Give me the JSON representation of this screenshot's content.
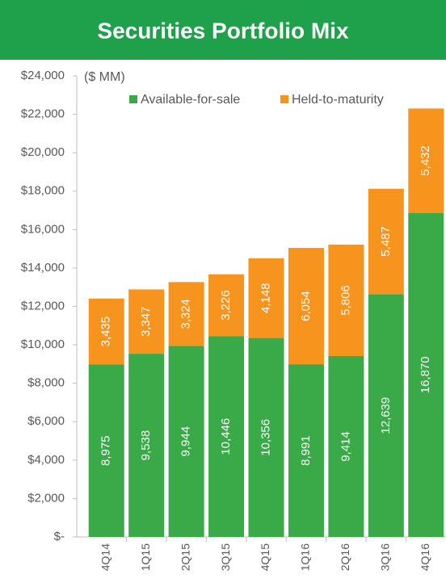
{
  "chart_data": {
    "type": "stacked_bar",
    "title": "Securities Portfolio Mix",
    "unit_label": "($ MM)",
    "categories": [
      "4Q14",
      "1Q15",
      "2Q15",
      "3Q15",
      "4Q15",
      "1Q16",
      "2Q16",
      "3Q16",
      "4Q16"
    ],
    "series": [
      {
        "name": "Available-for-sale",
        "color": "#3aaa48",
        "values": [
          8975,
          9538,
          9944,
          10446,
          10356,
          8991,
          9414,
          12639,
          16870
        ],
        "value_labels": [
          "8,975",
          "9,538",
          "9,944",
          "10,446",
          "10,356",
          "8,991",
          "9,414",
          "12,639",
          "16,870"
        ]
      },
      {
        "name": "Held-to-maturity",
        "color": "#f7941d",
        "values": [
          3435,
          3347,
          3324,
          3226,
          4148,
          6054,
          5806,
          5487,
          5432
        ],
        "value_labels": [
          "3,435",
          "3,347",
          "3,324",
          "3,226",
          "4,148",
          "6,054",
          "5,806",
          "5,487",
          "5,432"
        ]
      }
    ],
    "ylim": [
      0,
      24000
    ],
    "yticks": [
      {
        "value": 0,
        "label": "$-"
      },
      {
        "value": 2000,
        "label": "$2,000"
      },
      {
        "value": 4000,
        "label": "$4,000"
      },
      {
        "value": 6000,
        "label": "$6,000"
      },
      {
        "value": 8000,
        "label": "$8,000"
      },
      {
        "value": 10000,
        "label": "$10,000"
      },
      {
        "value": 12000,
        "label": "$12,000"
      },
      {
        "value": 14000,
        "label": "$14,000"
      },
      {
        "value": 16000,
        "label": "$16,000"
      },
      {
        "value": 18000,
        "label": "$18,000"
      },
      {
        "value": 20000,
        "label": "$20,000"
      },
      {
        "value": 22000,
        "label": "$22,000"
      },
      {
        "value": 24000,
        "label": "$24,000"
      }
    ],
    "legend": "top"
  }
}
